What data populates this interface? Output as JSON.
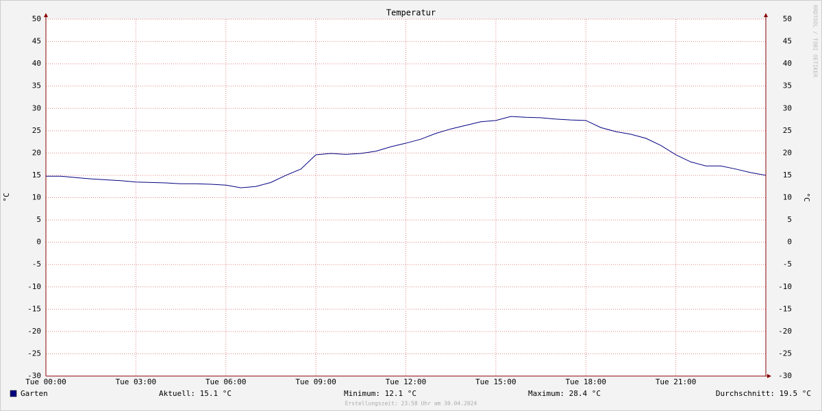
{
  "chart_data": {
    "type": "line",
    "title": "Temperatur",
    "y_label": "°C",
    "watermark": "RRDTOOL / TOBI OETIKER",
    "x": [
      0,
      0.5,
      1,
      1.5,
      2,
      2.5,
      3,
      3.5,
      4,
      4.5,
      5,
      5.5,
      6,
      6.5,
      7,
      7.5,
      8,
      8.5,
      9,
      9.5,
      10,
      10.5,
      11,
      11.5,
      12,
      12.5,
      13,
      13.5,
      14,
      14.5,
      15,
      15.5,
      16,
      16.5,
      17,
      17.5,
      18,
      18.5,
      19,
      19.5,
      20,
      20.5,
      21,
      21.5,
      22,
      22.5,
      23,
      23.5,
      24
    ],
    "series": [
      {
        "name": "Garten",
        "color": "#000080",
        "values": [
          14.8,
          14.8,
          14.5,
          14.2,
          14.0,
          13.8,
          13.5,
          13.4,
          13.3,
          13.1,
          13.1,
          13.0,
          12.8,
          12.2,
          12.5,
          13.4,
          15.0,
          16.4,
          19.6,
          19.9,
          19.7,
          19.9,
          20.4,
          21.4,
          22.2,
          23.1,
          24.4,
          25.4,
          26.2,
          27.0,
          27.3,
          28.2,
          28.0,
          27.9,
          27.6,
          27.4,
          27.3,
          25.7,
          24.8,
          24.2,
          23.3,
          21.7,
          19.6,
          18.0,
          17.1,
          17.1,
          16.4,
          15.6,
          15.0
        ]
      }
    ],
    "xlim": [
      0,
      24
    ],
    "xticks": [
      {
        "value": 0,
        "label": "Tue 00:00"
      },
      {
        "value": 3,
        "label": "Tue 03:00"
      },
      {
        "value": 6,
        "label": "Tue 06:00"
      },
      {
        "value": 9,
        "label": "Tue 09:00"
      },
      {
        "value": 12,
        "label": "Tue 12:00"
      },
      {
        "value": 15,
        "label": "Tue 15:00"
      },
      {
        "value": 18,
        "label": "Tue 18:00"
      },
      {
        "value": 21,
        "label": "Tue 21:00"
      }
    ],
    "ylim": [
      -30,
      50
    ],
    "yticks": [
      -30,
      -25,
      -20,
      -15,
      -10,
      -5,
      0,
      5,
      10,
      15,
      20,
      25,
      30,
      35,
      40,
      45,
      50
    ],
    "grid": true,
    "stats": [
      "Aktuell: 15.1 °C",
      "Minimum: 12.1 °C",
      "Maximum: 28.4 °C",
      "Durchschnitt: 19.5 °C"
    ],
    "footer": "Erstellungszeit: 23:58 Uhr am 30.04.2024"
  }
}
